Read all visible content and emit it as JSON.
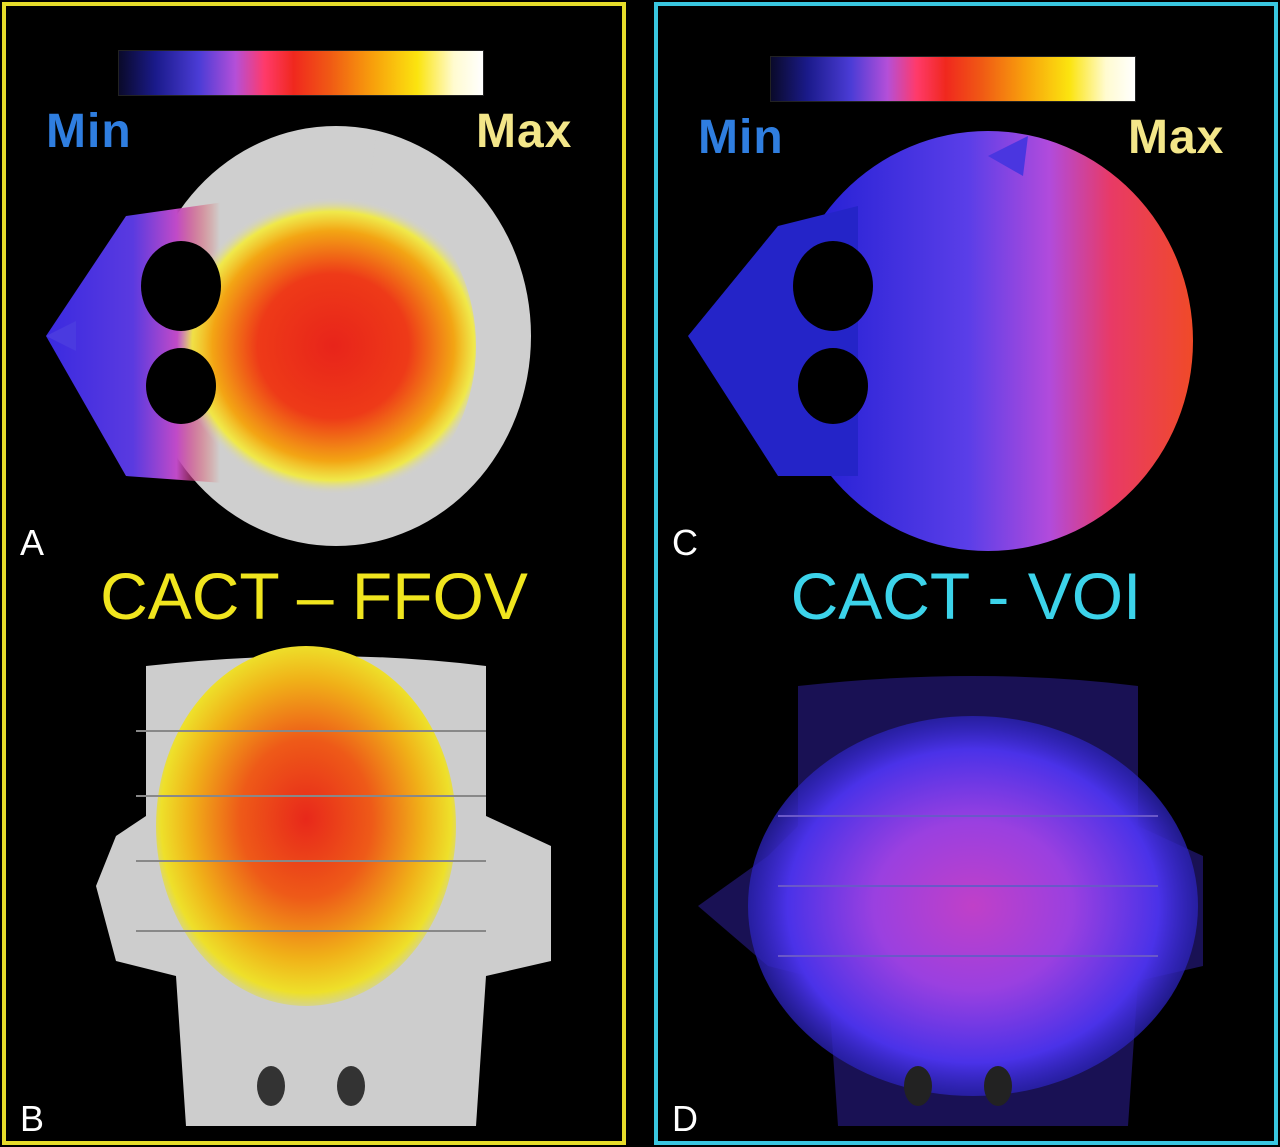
{
  "panels": [
    {
      "colorbar": {
        "min_label": "Min",
        "max_label": "Max"
      },
      "top_letter": "A",
      "bottom_letter": "B",
      "title": "CACT – FFOV",
      "border_color": "#e6dc2a"
    },
    {
      "colorbar": {
        "min_label": "Min",
        "max_label": "Max"
      },
      "top_letter": "C",
      "bottom_letter": "D",
      "title": "CACT - VOI",
      "border_color": "#39c6e0"
    }
  ]
}
